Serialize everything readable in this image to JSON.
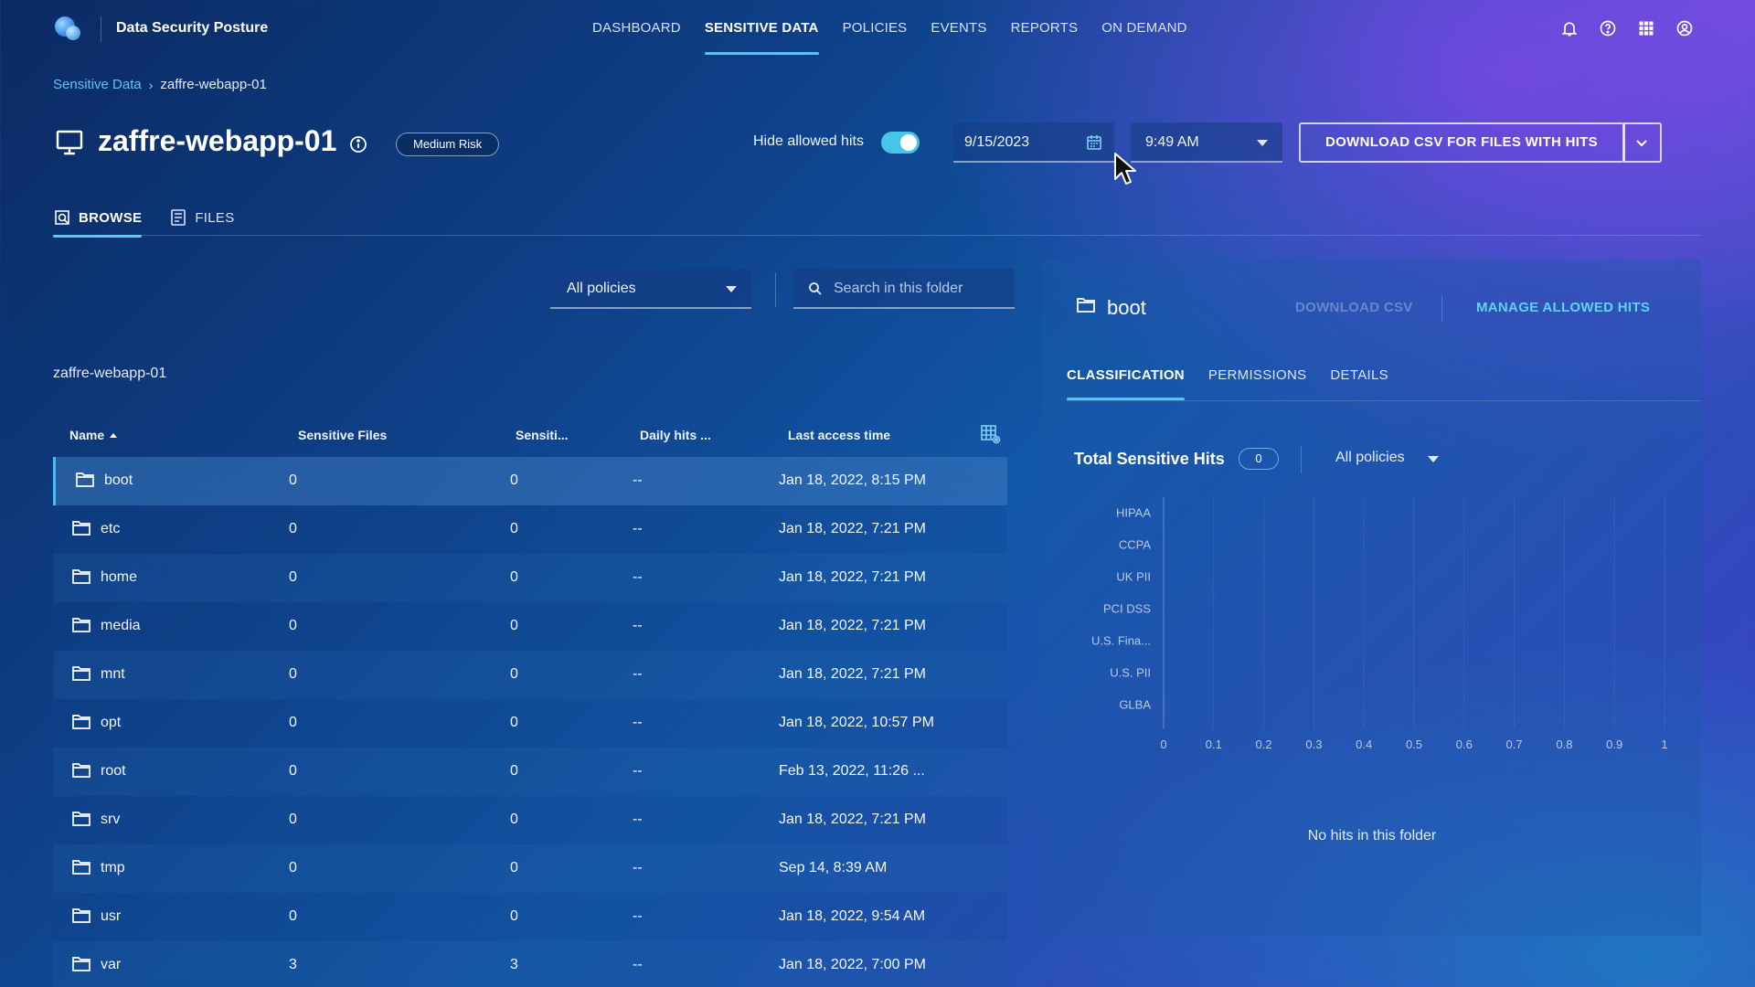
{
  "app": {
    "title": "Data Security Posture",
    "nav": [
      {
        "label": "DASHBOARD",
        "active": false
      },
      {
        "label": "SENSITIVE DATA",
        "active": true
      },
      {
        "label": "POLICIES",
        "active": false
      },
      {
        "label": "EVENTS",
        "active": false
      },
      {
        "label": "REPORTS",
        "active": false
      },
      {
        "label": "ON DEMAND",
        "active": false
      }
    ],
    "icons": [
      "bell-icon",
      "help-icon",
      "apps-grid-icon",
      "account-icon"
    ]
  },
  "breadcrumb": {
    "parent": "Sensitive Data",
    "current": "zaffre-webapp-01"
  },
  "host": {
    "name": "zaffre-webapp-01",
    "risk": "Medium Risk",
    "hide_allowed_label": "Hide allowed hits",
    "hide_allowed_on": true,
    "date": "9/15/2023",
    "time": "9:49 AM",
    "download_label": "DOWNLOAD CSV FOR FILES WITH HITS"
  },
  "tabs": [
    {
      "label": "BROWSE",
      "icon": "browse-icon",
      "active": true
    },
    {
      "label": "FILES",
      "icon": "files-icon",
      "active": false
    }
  ],
  "filters": {
    "policy": "All policies",
    "search_placeholder": "Search in this folder"
  },
  "folder_path": "zaffre-webapp-01",
  "table": {
    "columns": [
      "Name",
      "Sensitive Files",
      "Sensiti...",
      "Daily hits ...",
      "Last access time"
    ],
    "rows": [
      {
        "name": "boot",
        "sensitive_files": "0",
        "sensitive": "0",
        "daily_hits": "--",
        "last_access": "Jan 18, 2022, 8:15 PM",
        "selected": true
      },
      {
        "name": "etc",
        "sensitive_files": "0",
        "sensitive": "0",
        "daily_hits": "--",
        "last_access": "Jan 18, 2022, 7:21 PM"
      },
      {
        "name": "home",
        "sensitive_files": "0",
        "sensitive": "0",
        "daily_hits": "--",
        "last_access": "Jan 18, 2022, 7:21 PM"
      },
      {
        "name": "media",
        "sensitive_files": "0",
        "sensitive": "0",
        "daily_hits": "--",
        "last_access": "Jan 18, 2022, 7:21 PM"
      },
      {
        "name": "mnt",
        "sensitive_files": "0",
        "sensitive": "0",
        "daily_hits": "--",
        "last_access": "Jan 18, 2022, 7:21 PM"
      },
      {
        "name": "opt",
        "sensitive_files": "0",
        "sensitive": "0",
        "daily_hits": "--",
        "last_access": "Jan 18, 2022, 10:57 PM"
      },
      {
        "name": "root",
        "sensitive_files": "0",
        "sensitive": "0",
        "daily_hits": "--",
        "last_access": "Feb 13, 2022, 11:26 ..."
      },
      {
        "name": "srv",
        "sensitive_files": "0",
        "sensitive": "0",
        "daily_hits": "--",
        "last_access": "Jan 18, 2022, 7:21 PM"
      },
      {
        "name": "tmp",
        "sensitive_files": "0",
        "sensitive": "0",
        "daily_hits": "--",
        "last_access": "Sep 14, 8:39 AM"
      },
      {
        "name": "usr",
        "sensitive_files": "0",
        "sensitive": "0",
        "daily_hits": "--",
        "last_access": "Jan 18, 2022, 9:54 AM"
      },
      {
        "name": "var",
        "sensitive_files": "3",
        "sensitive": "3",
        "daily_hits": "--",
        "last_access": "Jan 18, 2022, 7:00 PM"
      }
    ]
  },
  "panel": {
    "title": "boot",
    "download_csv": "DOWNLOAD CSV",
    "manage_allowed": "MANAGE ALLOWED HITS",
    "tabs": [
      {
        "label": "CLASSIFICATION",
        "active": true
      },
      {
        "label": "PERMISSIONS",
        "active": false
      },
      {
        "label": "DETAILS",
        "active": false
      }
    ],
    "total_hits_label": "Total Sensitive Hits",
    "total_hits": "0",
    "policy": "All policies",
    "empty_message": "No hits in this folder"
  },
  "chart_data": {
    "type": "bar",
    "orientation": "horizontal",
    "categories": [
      "HIPAA",
      "CCPA",
      "UK PII",
      "PCI DSS",
      "U.S. Fina...",
      "U.S. PII",
      "GLBA"
    ],
    "values": [
      0,
      0,
      0,
      0,
      0,
      0,
      0
    ],
    "xlim": [
      0,
      1
    ],
    "xticks": [
      "0",
      "0.1",
      "0.2",
      "0.3",
      "0.4",
      "0.5",
      "0.6",
      "0.7",
      "0.8",
      "0.9",
      "1"
    ],
    "grid": true
  },
  "colors": {
    "accent": "#4cc9f0",
    "link": "#62c3f5",
    "manage": "#5fd3ee"
  }
}
